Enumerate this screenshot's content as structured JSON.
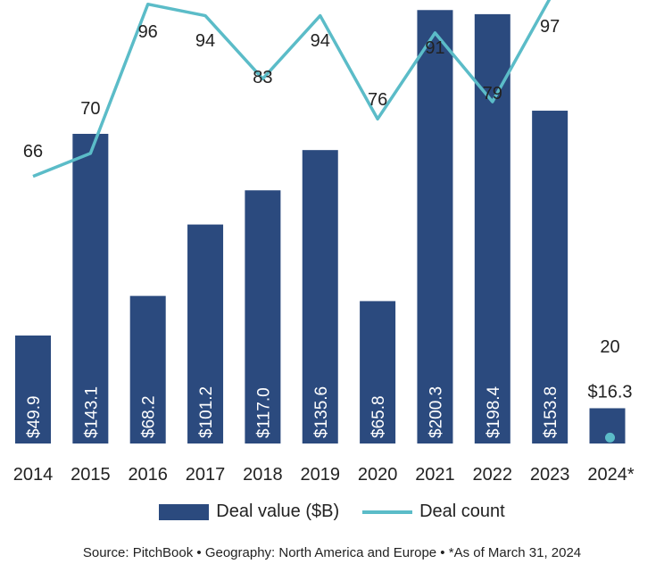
{
  "chart_data": {
    "type": "bar",
    "categories": [
      "2014",
      "2015",
      "2016",
      "2017",
      "2018",
      "2019",
      "2020",
      "2021",
      "2022",
      "2023",
      "2024*"
    ],
    "series": [
      {
        "name": "Deal value ($B)",
        "type": "bar",
        "color": "#2b4a7e",
        "values": [
          49.9,
          143.1,
          68.2,
          101.2,
          117.0,
          135.6,
          65.8,
          200.3,
          198.4,
          153.8,
          16.3
        ],
        "labels": [
          "$49.9",
          "$143.1",
          "$68.2",
          "$101.2",
          "$117.0",
          "$135.6",
          "$65.8",
          "$200.3",
          "$198.4",
          "$153.8",
          "$16.3"
        ]
      },
      {
        "name": "Deal count",
        "type": "line",
        "color": "#5bbcc8",
        "values": [
          66,
          70,
          96,
          94,
          83,
          94,
          76,
          91,
          79,
          97,
          20
        ],
        "labels": [
          "66",
          "70",
          "96",
          "94",
          "83",
          "94",
          "76",
          "91",
          "79",
          "97",
          "20"
        ]
      }
    ],
    "legend": "bottom",
    "grid": false
  },
  "legend": {
    "bar_label": "Deal value ($B)",
    "line_label": "Deal count"
  },
  "source": "Source: PitchBook  •  Geography: North America and Europe  •  *As of March 31, 2024"
}
